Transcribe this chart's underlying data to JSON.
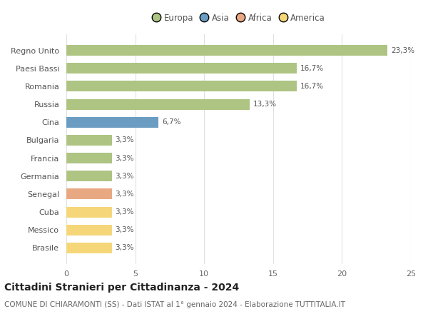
{
  "categories": [
    "Brasile",
    "Messico",
    "Cuba",
    "Senegal",
    "Germania",
    "Francia",
    "Bulgaria",
    "Cina",
    "Russia",
    "Romania",
    "Paesi Bassi",
    "Regno Unito"
  ],
  "values": [
    3.3,
    3.3,
    3.3,
    3.3,
    3.3,
    3.3,
    3.3,
    6.7,
    13.3,
    16.7,
    16.7,
    23.3
  ],
  "labels": [
    "3,3%",
    "3,3%",
    "3,3%",
    "3,3%",
    "3,3%",
    "3,3%",
    "3,3%",
    "6,7%",
    "13,3%",
    "16,7%",
    "16,7%",
    "23,3%"
  ],
  "colors": [
    "#f5d77a",
    "#f5d77a",
    "#f5d77a",
    "#e8a882",
    "#aec483",
    "#aec483",
    "#aec483",
    "#6b9dc2",
    "#aec483",
    "#aec483",
    "#aec483",
    "#aec483"
  ],
  "legend_labels": [
    "Europa",
    "Asia",
    "Africa",
    "America"
  ],
  "legend_colors": [
    "#aec483",
    "#6b9dc2",
    "#e8a882",
    "#f5d77a"
  ],
  "title": "Cittadini Stranieri per Cittadinanza - 2024",
  "subtitle": "COMUNE DI CHIARAMONTI (SS) - Dati ISTAT al 1° gennaio 2024 - Elaborazione TUTTITALIA.IT",
  "xlim": [
    0,
    25
  ],
  "xticks": [
    0,
    5,
    10,
    15,
    20,
    25
  ],
  "background_color": "#ffffff",
  "grid_color": "#e0e0e0",
  "bar_height": 0.6,
  "label_fontsize": 7.5,
  "title_fontsize": 10,
  "subtitle_fontsize": 7.5,
  "tick_fontsize": 8,
  "legend_fontsize": 8.5
}
